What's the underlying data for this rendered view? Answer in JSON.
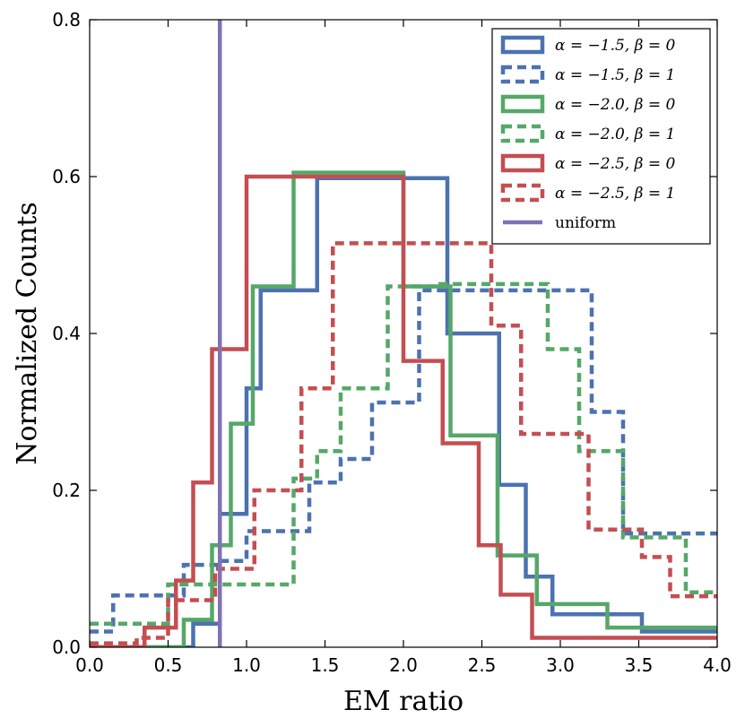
{
  "chart_data": {
    "type": "line",
    "title": "",
    "xlabel": "EM ratio",
    "ylabel": "Normalized Counts",
    "xlim": [
      0.0,
      4.0
    ],
    "ylim": [
      0.0,
      0.8
    ],
    "xticks": [
      0.0,
      0.5,
      1.0,
      1.5,
      2.0,
      2.5,
      3.0,
      3.5,
      4.0
    ],
    "xtick_labels": [
      "0.0",
      "0.5",
      "1.0",
      "1.5",
      "2.0",
      "2.5",
      "3.0",
      "3.5",
      "4.0"
    ],
    "yticks": [
      0.0,
      0.2,
      0.4,
      0.6,
      0.8
    ],
    "ytick_labels": [
      "0.0",
      "0.2",
      "0.4",
      "0.6",
      "0.8"
    ],
    "grid": false,
    "legend_position": "top-right",
    "vline": {
      "name": "uniform",
      "x": 0.83,
      "color": "#8172b2"
    },
    "series": [
      {
        "name": "α = −1.5, β = 0",
        "color": "#4c72b0",
        "dashed": false,
        "edges": [
          0.0,
          0.66,
          0.83,
          1.0,
          1.09,
          1.3,
          1.45,
          2.28,
          2.61,
          2.78,
          2.95,
          3.52,
          4.0
        ],
        "values": [
          0.0,
          0.03,
          0.17,
          0.33,
          0.455,
          0.455,
          0.598,
          0.4,
          0.207,
          0.09,
          0.042,
          0.02
        ]
      },
      {
        "name": "α = −1.5, β = 1",
        "color": "#4c72b0",
        "dashed": true,
        "edges": [
          0.0,
          0.15,
          0.6,
          0.83,
          1.0,
          1.4,
          1.6,
          1.8,
          2.1,
          2.35,
          3.2,
          3.4,
          3.95,
          4.0
        ],
        "values": [
          0.02,
          0.066,
          0.105,
          0.11,
          0.148,
          0.21,
          0.24,
          0.312,
          0.455,
          0.455,
          0.3,
          0.145,
          0.145
        ]
      },
      {
        "name": "α = −2.0, β = 0",
        "color": "#55a868",
        "dashed": false,
        "edges": [
          0.0,
          0.6,
          0.78,
          0.9,
          1.04,
          1.3,
          2.0,
          2.3,
          2.6,
          2.85,
          3.3,
          4.0
        ],
        "values": [
          0.0,
          0.035,
          0.13,
          0.285,
          0.46,
          0.605,
          0.46,
          0.27,
          0.117,
          0.055,
          0.025
        ]
      },
      {
        "name": "α = −2.0, β = 1",
        "color": "#55a868",
        "dashed": true,
        "edges": [
          0.0,
          0.5,
          1.3,
          1.45,
          1.6,
          1.9,
          2.2,
          2.92,
          3.12,
          3.4,
          3.8,
          4.0
        ],
        "values": [
          0.03,
          0.08,
          0.215,
          0.25,
          0.33,
          0.46,
          0.463,
          0.38,
          0.25,
          0.14,
          0.07
        ]
      },
      {
        "name": "α = −2.5, β = 0",
        "color": "#c44e52",
        "dashed": false,
        "edges": [
          0.0,
          0.35,
          0.55,
          0.66,
          0.78,
          1.0,
          2.0,
          2.25,
          2.48,
          2.62,
          2.82,
          4.0
        ],
        "values": [
          0.0,
          0.025,
          0.085,
          0.21,
          0.38,
          0.6,
          0.365,
          0.26,
          0.13,
          0.067,
          0.012
        ]
      },
      {
        "name": "α = −2.5, β = 1",
        "color": "#c44e52",
        "dashed": true,
        "edges": [
          0.0,
          0.3,
          0.5,
          0.8,
          1.05,
          1.35,
          1.55,
          2.56,
          2.75,
          3.18,
          3.52,
          3.7,
          4.0
        ],
        "values": [
          0.005,
          0.012,
          0.06,
          0.1,
          0.2,
          0.33,
          0.515,
          0.41,
          0.272,
          0.15,
          0.115,
          0.065
        ]
      }
    ]
  }
}
